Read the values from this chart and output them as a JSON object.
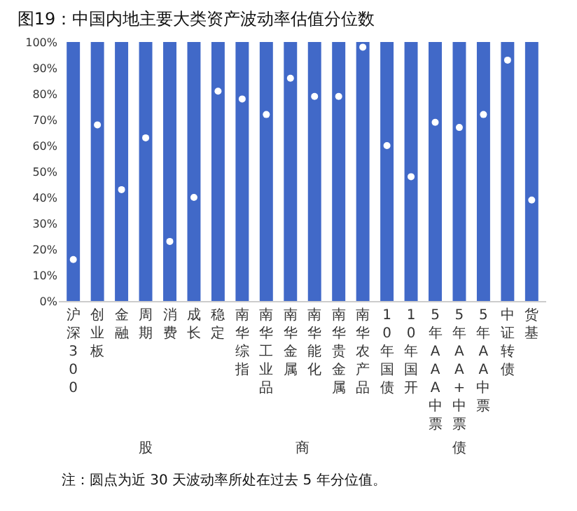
{
  "chart_data": {
    "type": "bar",
    "title": "图19：中国内地主要大类资产波动率估值分位数",
    "categories": [
      "沪深300",
      "创业板",
      "金融",
      "周期",
      "消费",
      "成长",
      "稳定",
      "南华综指",
      "南华工业品",
      "南华金属",
      "南华能化",
      "南华贵金属",
      "南华农产品",
      "10年国债",
      "10年国开",
      "5年AAA中票",
      "5年AA+中票",
      "5年AA中票",
      "中证转债",
      "货基"
    ],
    "series": [
      {
        "color": "#4169c8",
        "values": [
          100,
          100,
          100,
          100,
          100,
          100,
          100,
          100,
          100,
          100,
          100,
          100,
          100,
          100,
          100,
          100,
          100,
          100,
          100,
          100
        ]
      },
      {
        "type": "scatter",
        "color": "#ffffff",
        "values": [
          16,
          68,
          43,
          63,
          23,
          40,
          81,
          78,
          72,
          86,
          79,
          79,
          98,
          60,
          48,
          69,
          67,
          72,
          93,
          39
        ]
      }
    ],
    "ylim": [
      0,
      100
    ],
    "yticks": [
      {
        "value": 0,
        "label": "0%"
      },
      {
        "value": 10,
        "label": "10%"
      },
      {
        "value": 20,
        "label": "20%"
      },
      {
        "value": 30,
        "label": "30%"
      },
      {
        "value": 40,
        "label": "40%"
      },
      {
        "value": 50,
        "label": "50%"
      },
      {
        "value": 60,
        "label": "60%"
      },
      {
        "value": 70,
        "label": "70%"
      },
      {
        "value": 80,
        "label": "80%"
      },
      {
        "value": 90,
        "label": "90%"
      },
      {
        "value": 100,
        "label": "100%"
      }
    ],
    "marker": "circle",
    "annotations": [
      "股",
      "商",
      "债",
      "注：圆点为近 30 天波动率所处在过去 5 年分位值。"
    ]
  }
}
